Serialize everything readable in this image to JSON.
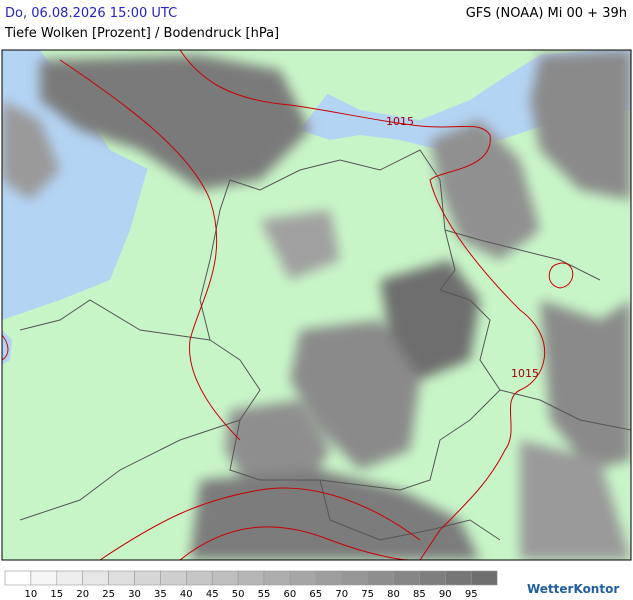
{
  "header": {
    "datetime": "Do, 06.08.2026 15:00 UTC",
    "model": "GFS (NOAA) Mi 00 + 39h",
    "subtitle": "Tiefe Wolken [Prozent] / Bodendruck [hPa]"
  },
  "isobar_labels": [
    1015,
    1015
  ],
  "legend": {
    "values": [
      10,
      15,
      20,
      25,
      30,
      35,
      40,
      45,
      50,
      55,
      60,
      65,
      70,
      75,
      80,
      85,
      90,
      95
    ],
    "colors": [
      "#ffffff",
      "#f6f6f6",
      "#eeeeee",
      "#e6e6e6",
      "#dedede",
      "#d6d6d6",
      "#cecece",
      "#c6c6c6",
      "#bebebe",
      "#b6b6b6",
      "#aeaeae",
      "#a6a6a6",
      "#9e9e9e",
      "#969696",
      "#8e8e8e",
      "#868686",
      "#7e7e7e",
      "#767676",
      "#6e6e6e"
    ]
  },
  "brand": "WetterKontor"
}
